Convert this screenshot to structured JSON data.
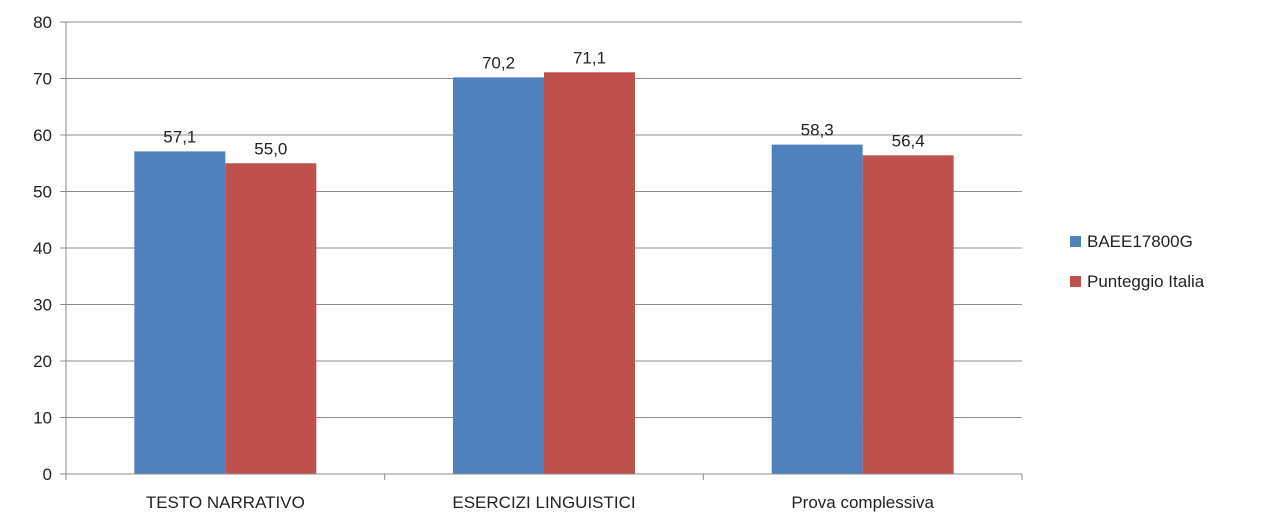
{
  "chart_data": {
    "type": "bar",
    "categories": [
      "TESTO NARRATIVO",
      "ESERCIZI LINGUISTICI",
      "Prova complessiva"
    ],
    "series": [
      {
        "name": "BAEE17800G",
        "values": [
          57.1,
          70.2,
          58.3
        ],
        "labels": [
          "57,1",
          "70,2",
          "58,3"
        ],
        "color": "#4f81bd"
      },
      {
        "name": "Punteggio Italia",
        "values": [
          55.0,
          71.1,
          56.4
        ],
        "labels": [
          "55,0",
          "71,1",
          "56,4"
        ],
        "color": "#c0504d"
      }
    ],
    "title": "",
    "xlabel": "",
    "ylabel": "",
    "ylim": [
      0,
      80
    ],
    "yticks": [
      0,
      10,
      20,
      30,
      40,
      50,
      60,
      70,
      80
    ],
    "grid": true,
    "legend_position": "right"
  }
}
